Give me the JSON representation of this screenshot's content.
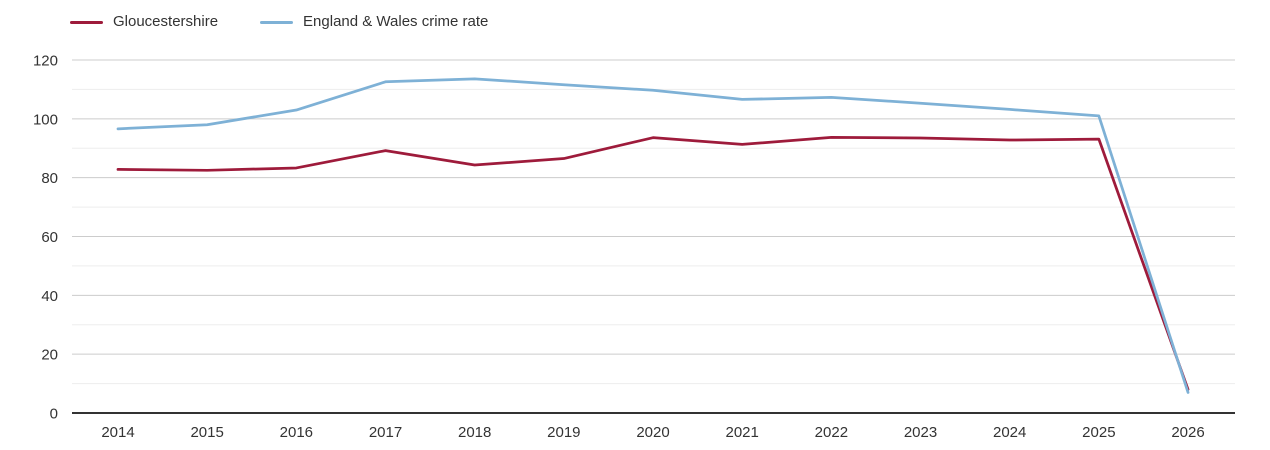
{
  "chart_data": {
    "type": "line",
    "title": "",
    "categories": [
      "2014",
      "2015",
      "2016",
      "2017",
      "2018",
      "2019",
      "2020",
      "2021",
      "2022",
      "2023",
      "2024",
      "2025",
      "2026"
    ],
    "series": [
      {
        "name": "Gloucestershire",
        "color": "#9e1b3b",
        "values": [
          82.8,
          82.5,
          83.3,
          89.2,
          84.3,
          86.5,
          93.6,
          91.3,
          93.7,
          93.5,
          92.8,
          93.1,
          8
        ]
      },
      {
        "name": "England & Wales crime rate",
        "color": "#7eb1d6",
        "values": [
          96.6,
          98.0,
          103.0,
          112.6,
          113.6,
          111.6,
          109.7,
          106.6,
          107.3,
          105.3,
          103.2,
          101.0,
          7
        ]
      }
    ],
    "xlabel": "",
    "ylabel": "",
    "ylim": [
      0,
      125
    ],
    "yticks_labeled": [
      0,
      20,
      40,
      60,
      80,
      100,
      120
    ],
    "yticks_minor": [
      10,
      30,
      50,
      70,
      90,
      110
    ],
    "grid": "horizontal",
    "legend_position": "top-left",
    "colors": {
      "axis_line": "#333333",
      "grid_major": "#cccccc",
      "grid_minor": "#ededed",
      "tick_label": "#333333"
    }
  }
}
